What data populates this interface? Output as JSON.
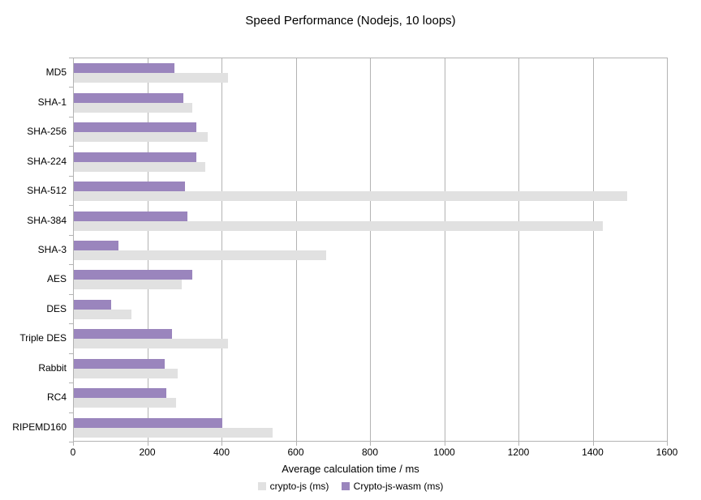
{
  "chart_data": {
    "type": "bar",
    "orientation": "horizontal",
    "title": "Speed Performance (Nodejs, 10 loops)",
    "xlabel": "Average calculation time / ms",
    "ylabel": "",
    "categories": [
      "MD5",
      "SHA-1",
      "SHA-256",
      "SHA-224",
      "SHA-512",
      "SHA-384",
      "SHA-3",
      "AES",
      "DES",
      "Triple DES",
      "Rabbit",
      "RC4",
      "RIPEMD160"
    ],
    "series": [
      {
        "name": "crypto-js (ms)",
        "color": "#e1e1e1",
        "values": [
          415,
          320,
          360,
          355,
          1490,
          1425,
          680,
          290,
          155,
          415,
          280,
          275,
          535
        ]
      },
      {
        "name": "Crypto-js-wasm (ms)",
        "color": "#9a85bd",
        "values": [
          270,
          295,
          330,
          330,
          300,
          305,
          120,
          320,
          100,
          265,
          245,
          250,
          400
        ]
      }
    ],
    "xlim": [
      0,
      1600
    ],
    "xticks": [
      0,
      200,
      400,
      600,
      800,
      1000,
      1200,
      1400,
      1600
    ],
    "grid": true,
    "grid_color": "#b3b3b3",
    "text_color": "#000000",
    "background": "#ffffff",
    "legend_position": "bottom"
  }
}
